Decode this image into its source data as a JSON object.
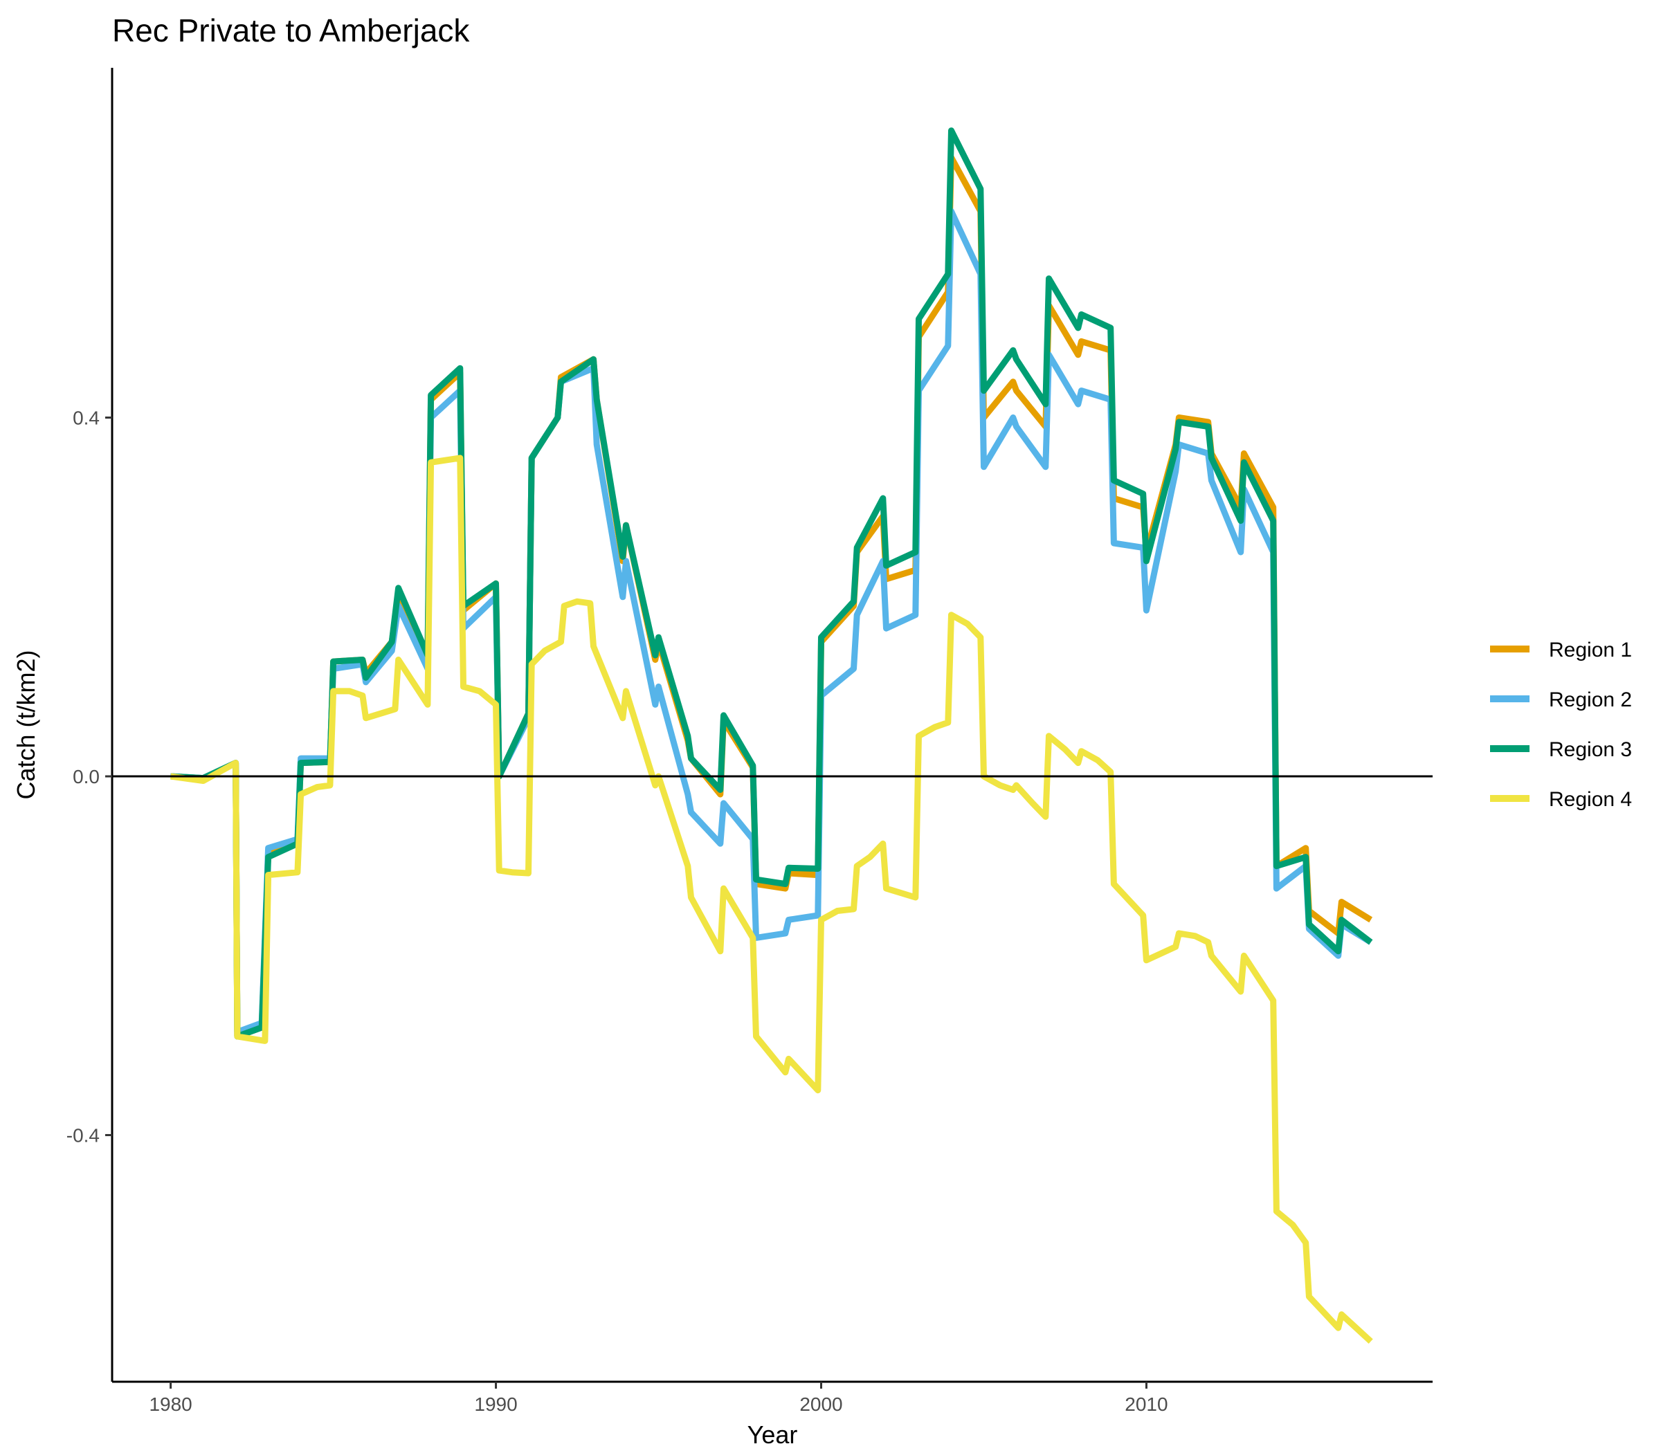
{
  "chart_data": {
    "type": "line",
    "title": "Rec Private to Amberjack",
    "xlabel": "Year",
    "ylabel": "Catch (t/km2)",
    "xlim": [
      1978.2,
      2018.8
    ],
    "ylim": [
      -0.675,
      0.79
    ],
    "x_ticks": [
      1980,
      1990,
      2000,
      2010
    ],
    "y_ticks": [
      -0.4,
      0.0,
      0.4
    ],
    "y_tick_labels": [
      "-0.4",
      "0.0",
      "0.4"
    ],
    "zero_line": true,
    "grid": false,
    "legend_position": "right",
    "series": [
      {
        "name": "Region 1",
        "color": "#E69F00",
        "points": [
          [
            1980,
            0.0
          ],
          [
            1981,
            -0.002
          ],
          [
            1982,
            0.015
          ],
          [
            1982.05,
            -0.29
          ],
          [
            1982.8,
            -0.28
          ],
          [
            1983,
            -0.085
          ],
          [
            1983.9,
            -0.075
          ],
          [
            1984,
            0.015
          ],
          [
            1984.9,
            0.016
          ],
          [
            1985,
            0.128
          ],
          [
            1985.9,
            0.13
          ],
          [
            1986,
            0.115
          ],
          [
            1986.8,
            0.15
          ],
          [
            1987,
            0.205
          ],
          [
            1987.9,
            0.13
          ],
          [
            1988,
            0.42
          ],
          [
            1988.9,
            0.45
          ],
          [
            1989,
            0.185
          ],
          [
            1990,
            0.215
          ],
          [
            1990.1,
            0.0
          ],
          [
            1991,
            0.07
          ],
          [
            1991.1,
            0.355
          ],
          [
            1991.9,
            0.4
          ],
          [
            1992,
            0.445
          ],
          [
            1993,
            0.465
          ],
          [
            1993.1,
            0.42
          ],
          [
            1993.9,
            0.24
          ],
          [
            1994,
            0.28
          ],
          [
            1994.9,
            0.13
          ],
          [
            1995,
            0.15
          ],
          [
            1995.9,
            0.04
          ],
          [
            1996,
            0.02
          ],
          [
            1996.9,
            -0.02
          ],
          [
            1997,
            0.062
          ],
          [
            1997.9,
            0.01
          ],
          [
            1998,
            -0.12
          ],
          [
            1998.9,
            -0.125
          ],
          [
            1999,
            -0.108
          ],
          [
            1999.9,
            -0.11
          ],
          [
            2000,
            0.15
          ],
          [
            2001,
            0.19
          ],
          [
            2001.1,
            0.25
          ],
          [
            2001.9,
            0.29
          ],
          [
            2002,
            0.22
          ],
          [
            2002.9,
            0.23
          ],
          [
            2003,
            0.49
          ],
          [
            2003.9,
            0.54
          ],
          [
            2004,
            0.69
          ],
          [
            2004.9,
            0.63
          ],
          [
            2005,
            0.4
          ],
          [
            2005.9,
            0.44
          ],
          [
            2006,
            0.43
          ],
          [
            2006.9,
            0.39
          ],
          [
            2007,
            0.525
          ],
          [
            2007.9,
            0.47
          ],
          [
            2008,
            0.485
          ],
          [
            2008.9,
            0.475
          ],
          [
            2009,
            0.31
          ],
          [
            2009.9,
            0.3
          ],
          [
            2010,
            0.25
          ],
          [
            2010.9,
            0.37
          ],
          [
            2011,
            0.4
          ],
          [
            2011.9,
            0.395
          ],
          [
            2012,
            0.36
          ],
          [
            2012.9,
            0.3
          ],
          [
            2013,
            0.36
          ],
          [
            2013.9,
            0.3
          ],
          [
            2014,
            -0.1
          ],
          [
            2014.9,
            -0.08
          ],
          [
            2015,
            -0.15
          ],
          [
            2015.9,
            -0.175
          ],
          [
            2016,
            -0.14
          ],
          [
            2016.9,
            -0.16
          ]
        ]
      },
      {
        "name": "Region 2",
        "color": "#56B4E9",
        "points": [
          [
            1980,
            0.0
          ],
          [
            1981,
            -0.002
          ],
          [
            1982,
            0.015
          ],
          [
            1982.05,
            -0.285
          ],
          [
            1982.8,
            -0.275
          ],
          [
            1983,
            -0.08
          ],
          [
            1983.9,
            -0.07
          ],
          [
            1984,
            0.02
          ],
          [
            1984.9,
            0.02
          ],
          [
            1985,
            0.12
          ],
          [
            1985.9,
            0.125
          ],
          [
            1986,
            0.105
          ],
          [
            1986.8,
            0.14
          ],
          [
            1987,
            0.19
          ],
          [
            1987.9,
            0.12
          ],
          [
            1988,
            0.4
          ],
          [
            1988.9,
            0.43
          ],
          [
            1989,
            0.165
          ],
          [
            1990,
            0.2
          ],
          [
            1990.1,
            0.0
          ],
          [
            1991,
            0.065
          ],
          [
            1991.1,
            0.355
          ],
          [
            1991.9,
            0.4
          ],
          [
            1992,
            0.44
          ],
          [
            1993,
            0.455
          ],
          [
            1993.1,
            0.37
          ],
          [
            1993.9,
            0.2
          ],
          [
            1994,
            0.24
          ],
          [
            1994.9,
            0.08
          ],
          [
            1995,
            0.1
          ],
          [
            1995.9,
            -0.02
          ],
          [
            1996,
            -0.04
          ],
          [
            1996.9,
            -0.075
          ],
          [
            1997,
            -0.03
          ],
          [
            1997.9,
            -0.07
          ],
          [
            1998,
            -0.18
          ],
          [
            1998.9,
            -0.175
          ],
          [
            1999,
            -0.16
          ],
          [
            1999.9,
            -0.155
          ],
          [
            2000,
            0.09
          ],
          [
            2001,
            0.12
          ],
          [
            2001.1,
            0.18
          ],
          [
            2001.9,
            0.24
          ],
          [
            2002,
            0.165
          ],
          [
            2002.9,
            0.18
          ],
          [
            2003,
            0.43
          ],
          [
            2003.9,
            0.48
          ],
          [
            2004,
            0.63
          ],
          [
            2004.9,
            0.56
          ],
          [
            2005,
            0.345
          ],
          [
            2005.9,
            0.4
          ],
          [
            2006,
            0.39
          ],
          [
            2006.9,
            0.345
          ],
          [
            2007,
            0.47
          ],
          [
            2007.9,
            0.415
          ],
          [
            2008,
            0.43
          ],
          [
            2008.9,
            0.42
          ],
          [
            2009,
            0.26
          ],
          [
            2009.9,
            0.255
          ],
          [
            2010,
            0.185
          ],
          [
            2010.9,
            0.34
          ],
          [
            2011,
            0.37
          ],
          [
            2011.9,
            0.36
          ],
          [
            2012,
            0.33
          ],
          [
            2012.9,
            0.25
          ],
          [
            2013,
            0.32
          ],
          [
            2013.9,
            0.25
          ],
          [
            2014,
            -0.125
          ],
          [
            2014.9,
            -0.1
          ],
          [
            2015,
            -0.17
          ],
          [
            2015.9,
            -0.2
          ],
          [
            2016,
            -0.165
          ],
          [
            2016.9,
            -0.185
          ]
        ]
      },
      {
        "name": "Region 3",
        "color": "#009E73",
        "points": [
          [
            1980,
            0.0
          ],
          [
            1981,
            -0.002
          ],
          [
            1982,
            0.015
          ],
          [
            1982.05,
            -0.29
          ],
          [
            1982.8,
            -0.28
          ],
          [
            1983,
            -0.09
          ],
          [
            1983.9,
            -0.075
          ],
          [
            1984,
            0.015
          ],
          [
            1984.9,
            0.016
          ],
          [
            1985,
            0.128
          ],
          [
            1985.9,
            0.13
          ],
          [
            1986,
            0.11
          ],
          [
            1986.8,
            0.15
          ],
          [
            1987,
            0.21
          ],
          [
            1987.9,
            0.135
          ],
          [
            1988,
            0.425
          ],
          [
            1988.9,
            0.455
          ],
          [
            1989,
            0.19
          ],
          [
            1990,
            0.215
          ],
          [
            1990.1,
            0.0
          ],
          [
            1991,
            0.07
          ],
          [
            1991.1,
            0.355
          ],
          [
            1991.9,
            0.4
          ],
          [
            1992,
            0.44
          ],
          [
            1993,
            0.465
          ],
          [
            1993.1,
            0.42
          ],
          [
            1993.9,
            0.245
          ],
          [
            1994,
            0.28
          ],
          [
            1994.9,
            0.135
          ],
          [
            1995,
            0.155
          ],
          [
            1995.9,
            0.045
          ],
          [
            1996,
            0.02
          ],
          [
            1996.9,
            -0.015
          ],
          [
            1997,
            0.068
          ],
          [
            1997.9,
            0.012
          ],
          [
            1998,
            -0.115
          ],
          [
            1998.9,
            -0.12
          ],
          [
            1999,
            -0.102
          ],
          [
            1999.9,
            -0.103
          ],
          [
            2000,
            0.155
          ],
          [
            2001,
            0.195
          ],
          [
            2001.1,
            0.255
          ],
          [
            2001.9,
            0.31
          ],
          [
            2002,
            0.235
          ],
          [
            2002.9,
            0.25
          ],
          [
            2003,
            0.51
          ],
          [
            2003.9,
            0.56
          ],
          [
            2004,
            0.72
          ],
          [
            2004.9,
            0.655
          ],
          [
            2005,
            0.43
          ],
          [
            2005.9,
            0.475
          ],
          [
            2006,
            0.465
          ],
          [
            2006.9,
            0.415
          ],
          [
            2007,
            0.555
          ],
          [
            2007.9,
            0.5
          ],
          [
            2008,
            0.515
          ],
          [
            2008.9,
            0.5
          ],
          [
            2009,
            0.33
          ],
          [
            2009.9,
            0.315
          ],
          [
            2010,
            0.24
          ],
          [
            2010.9,
            0.365
          ],
          [
            2011,
            0.395
          ],
          [
            2011.9,
            0.39
          ],
          [
            2012,
            0.355
          ],
          [
            2012.9,
            0.285
          ],
          [
            2013,
            0.35
          ],
          [
            2013.9,
            0.285
          ],
          [
            2014,
            -0.1
          ],
          [
            2014.9,
            -0.09
          ],
          [
            2015,
            -0.165
          ],
          [
            2015.9,
            -0.195
          ],
          [
            2016,
            -0.16
          ],
          [
            2016.9,
            -0.185
          ]
        ]
      },
      {
        "name": "Region 4",
        "color": "#F0E442",
        "points": [
          [
            1980,
            0.0
          ],
          [
            1981,
            -0.005
          ],
          [
            1982,
            0.015
          ],
          [
            1982.05,
            -0.29
          ],
          [
            1982.9,
            -0.295
          ],
          [
            1983,
            -0.11
          ],
          [
            1983.9,
            -0.107
          ],
          [
            1984,
            -0.02
          ],
          [
            1984.5,
            -0.012
          ],
          [
            1984.9,
            -0.01
          ],
          [
            1985,
            0.095
          ],
          [
            1985.5,
            0.095
          ],
          [
            1985.9,
            0.09
          ],
          [
            1986,
            0.065
          ],
          [
            1986.9,
            0.075
          ],
          [
            1987,
            0.13
          ],
          [
            1987.9,
            0.08
          ],
          [
            1988,
            0.35
          ],
          [
            1988.9,
            0.355
          ],
          [
            1989,
            0.1
          ],
          [
            1989.5,
            0.095
          ],
          [
            1990,
            0.08
          ],
          [
            1990.1,
            -0.105
          ],
          [
            1990.5,
            -0.107
          ],
          [
            1991,
            -0.108
          ],
          [
            1991.1,
            0.125
          ],
          [
            1991.5,
            0.14
          ],
          [
            1992,
            0.15
          ],
          [
            1992.1,
            0.19
          ],
          [
            1992.5,
            0.195
          ],
          [
            1992.9,
            0.193
          ],
          [
            1993,
            0.145
          ],
          [
            1993.9,
            0.065
          ],
          [
            1994,
            0.095
          ],
          [
            1994.9,
            -0.01
          ],
          [
            1995,
            0.0
          ],
          [
            1995.9,
            -0.1
          ],
          [
            1996,
            -0.135
          ],
          [
            1996.9,
            -0.195
          ],
          [
            1997,
            -0.125
          ],
          [
            1997.9,
            -0.18
          ],
          [
            1998,
            -0.29
          ],
          [
            1998.9,
            -0.33
          ],
          [
            1999,
            -0.315
          ],
          [
            1999.9,
            -0.35
          ],
          [
            2000,
            -0.16
          ],
          [
            2000.5,
            -0.15
          ],
          [
            2001,
            -0.148
          ],
          [
            2001.1,
            -0.1
          ],
          [
            2001.5,
            -0.09
          ],
          [
            2001.9,
            -0.075
          ],
          [
            2002,
            -0.125
          ],
          [
            2002.9,
            -0.135
          ],
          [
            2003,
            0.045
          ],
          [
            2003.5,
            0.055
          ],
          [
            2003.9,
            0.06
          ],
          [
            2004,
            0.18
          ],
          [
            2004.5,
            0.17
          ],
          [
            2004.9,
            0.155
          ],
          [
            2005,
            0.0
          ],
          [
            2005.5,
            -0.01
          ],
          [
            2005.9,
            -0.015
          ],
          [
            2006,
            -0.01
          ],
          [
            2006.5,
            -0.03
          ],
          [
            2006.9,
            -0.045
          ],
          [
            2007,
            0.045
          ],
          [
            2007.5,
            0.03
          ],
          [
            2007.9,
            0.015
          ],
          [
            2008,
            0.028
          ],
          [
            2008.5,
            0.018
          ],
          [
            2008.9,
            0.005
          ],
          [
            2009,
            -0.12
          ],
          [
            2009.9,
            -0.155
          ],
          [
            2010,
            -0.205
          ],
          [
            2010.9,
            -0.19
          ],
          [
            2011,
            -0.175
          ],
          [
            2011.5,
            -0.178
          ],
          [
            2011.9,
            -0.185
          ],
          [
            2012,
            -0.2
          ],
          [
            2012.9,
            -0.24
          ],
          [
            2013,
            -0.2
          ],
          [
            2013.9,
            -0.25
          ],
          [
            2014,
            -0.485
          ],
          [
            2014.5,
            -0.5
          ],
          [
            2014.9,
            -0.52
          ],
          [
            2015,
            -0.58
          ],
          [
            2015.9,
            -0.615
          ],
          [
            2016,
            -0.6
          ],
          [
            2016.9,
            -0.63
          ]
        ]
      }
    ]
  }
}
